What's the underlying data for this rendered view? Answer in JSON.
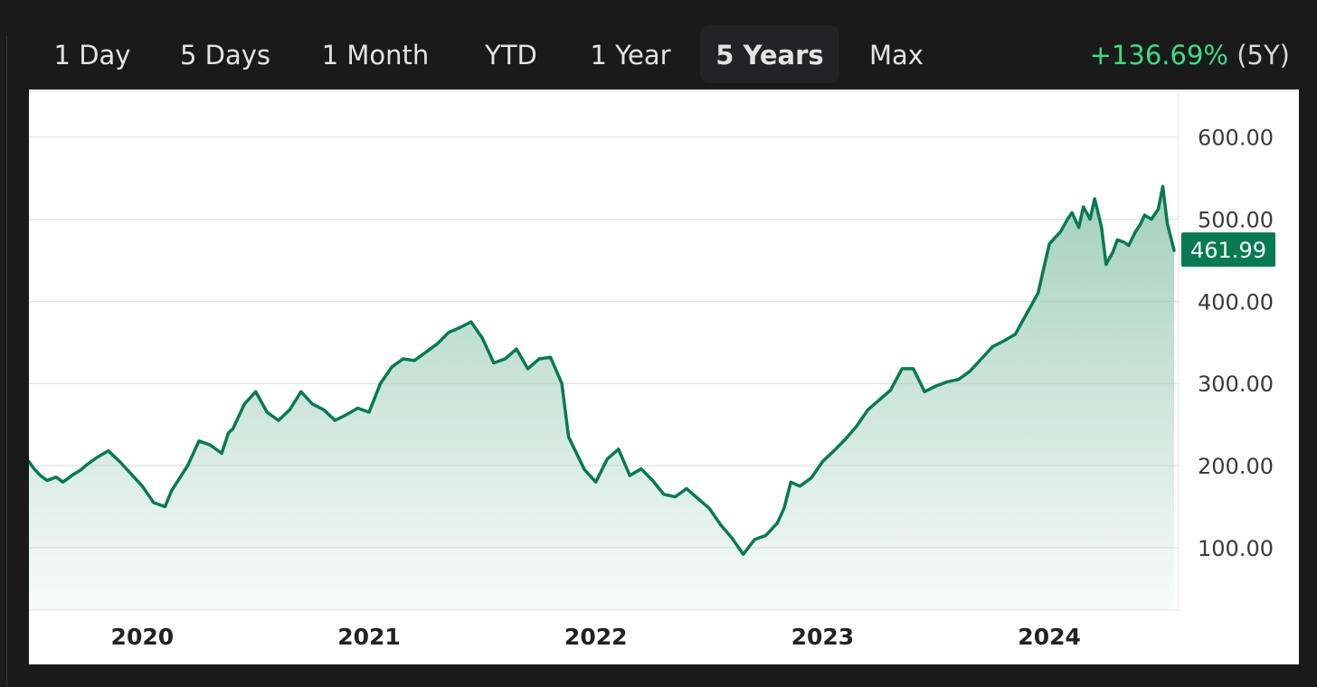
{
  "toolbar": {
    "tabs": [
      {
        "label": "1 Day"
      },
      {
        "label": "5 Days"
      },
      {
        "label": "1 Month"
      },
      {
        "label": "YTD"
      },
      {
        "label": "1 Year"
      },
      {
        "label": "5 Years",
        "active": true
      },
      {
        "label": "Max"
      }
    ],
    "change_value": "+136.69%",
    "change_period": "(5Y)"
  },
  "colors": {
    "line": "#077a52",
    "area_top": "#9fcdbb",
    "positive_change": "#3ddc84",
    "price_badge": "#077a52"
  },
  "chart_data": {
    "type": "area",
    "title": "",
    "xlabel": "",
    "ylabel": "",
    "x_tick_labels": [
      "2020",
      "2021",
      "2022",
      "2023",
      "2024"
    ],
    "y_tick_labels": [
      "100.00",
      "200.00",
      "300.00",
      "400.00",
      "500.00",
      "600.00"
    ],
    "ylim": [
      24,
      658
    ],
    "xlim": [
      2019.5,
      2024.57
    ],
    "grid": true,
    "last_value_label": "461.99",
    "series": [
      {
        "x": [
          2019.5,
          2019.52,
          2019.55,
          2019.58,
          2019.62,
          2019.65,
          2019.7,
          2019.73,
          2019.75,
          2019.8,
          2019.85,
          2019.9,
          2019.95,
          2020.0,
          2020.05,
          2020.1,
          2020.13,
          2020.2,
          2020.25,
          2020.3,
          2020.35,
          2020.38,
          2020.4,
          2020.45,
          2020.5,
          2020.55,
          2020.6,
          2020.65,
          2020.7,
          2020.75,
          2020.8,
          2020.85,
          2020.9,
          2020.95,
          2021.0,
          2021.05,
          2021.1,
          2021.15,
          2021.2,
          2021.25,
          2021.3,
          2021.35,
          2021.4,
          2021.45,
          2021.5,
          2021.55,
          2021.6,
          2021.65,
          2021.7,
          2021.75,
          2021.8,
          2021.85,
          2021.88,
          2021.95,
          2022.0,
          2022.05,
          2022.1,
          2022.15,
          2022.2,
          2022.25,
          2022.3,
          2022.35,
          2022.4,
          2022.45,
          2022.5,
          2022.55,
          2022.6,
          2022.65,
          2022.7,
          2022.75,
          2022.8,
          2022.83,
          2022.86,
          2022.9,
          2022.95,
          2023.0,
          2023.05,
          2023.1,
          2023.15,
          2023.2,
          2023.25,
          2023.3,
          2023.35,
          2023.4,
          2023.45,
          2023.5,
          2023.55,
          2023.6,
          2023.65,
          2023.7,
          2023.75,
          2023.8,
          2023.85,
          2023.9,
          2023.95,
          2024.0,
          2024.05,
          2024.08,
          2024.1,
          2024.13,
          2024.15,
          2024.18,
          2024.2,
          2024.23,
          2024.25,
          2024.28,
          2024.3,
          2024.33,
          2024.35,
          2024.38,
          2024.4,
          2024.42,
          2024.45,
          2024.48,
          2024.5,
          2024.52,
          2024.55
        ],
        "y": [
          205,
          197,
          188,
          182,
          186,
          180,
          190,
          195,
          200,
          210,
          218,
          205,
          190,
          175,
          155,
          150,
          170,
          200,
          230,
          225,
          215,
          240,
          245,
          275,
          290,
          265,
          255,
          268,
          290,
          275,
          268,
          255,
          262,
          270,
          265,
          300,
          320,
          330,
          328,
          338,
          348,
          362,
          368,
          375,
          355,
          325,
          330,
          342,
          318,
          330,
          332,
          300,
          235,
          195,
          180,
          208,
          220,
          188,
          196,
          182,
          165,
          162,
          172,
          160,
          148,
          128,
          112,
          92,
          110,
          115,
          130,
          148,
          180,
          175,
          185,
          205,
          218,
          232,
          248,
          268,
          280,
          292,
          318,
          318,
          290,
          297,
          302,
          305,
          315,
          330,
          345,
          352,
          360,
          385,
          410,
          470,
          485,
          500,
          508,
          490,
          515,
          500,
          525,
          490,
          445,
          460,
          475,
          472,
          468,
          485,
          493,
          505,
          500,
          512,
          540,
          495,
          462
        ]
      }
    ]
  }
}
